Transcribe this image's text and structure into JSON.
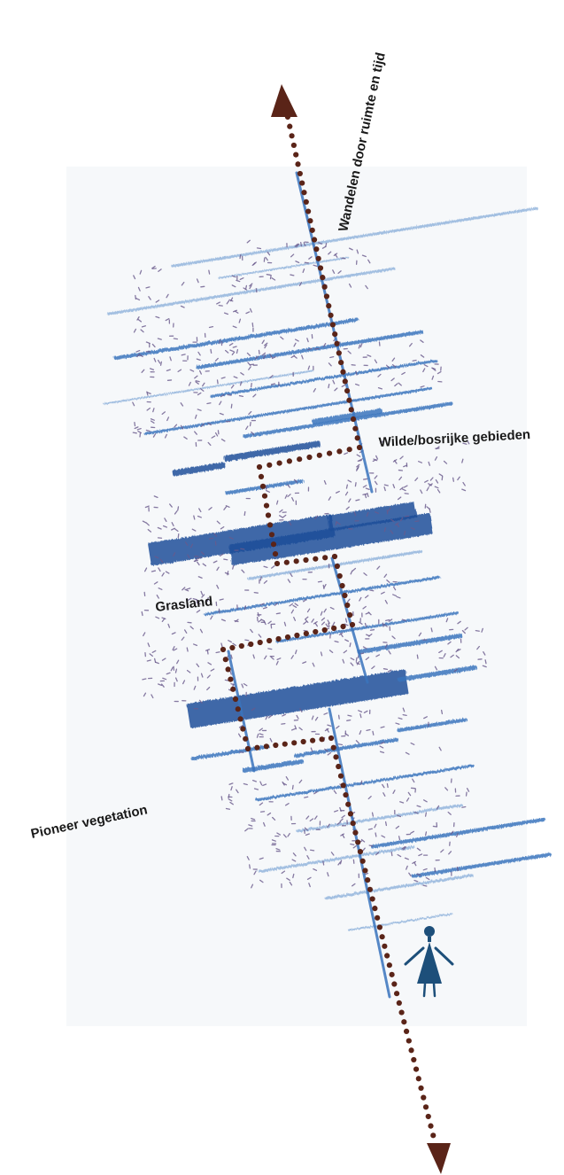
{
  "labels": {
    "time_axis": "Wandelen door ruimte en tijd",
    "wild_wooded": "Wilde/bosrijke gebieden",
    "grassland": "Grasland",
    "pioneer": "Pioneer vegetation"
  },
  "icons": [
    "walker-icon",
    "arrow-head-up-icon",
    "arrow-head-down-icon"
  ],
  "colors": {
    "stroke_blue_dark": "#1f4f9a",
    "stroke_blue": "#3a74bd",
    "stroke_blue_light": "#7fa6d6",
    "background_paper": "#f6f8fa",
    "path_dots": "#5a2418",
    "walker": "#1d4f7a",
    "speck": "#6a5a8c"
  }
}
